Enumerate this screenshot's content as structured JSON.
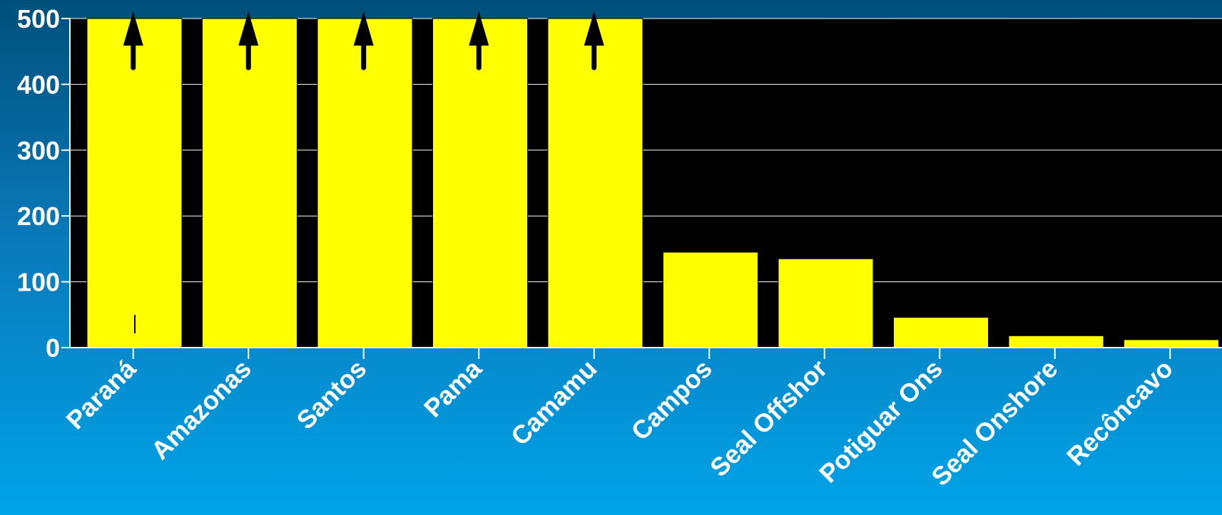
{
  "chart_data": {
    "type": "bar",
    "title": "",
    "xlabel": "",
    "ylabel": "",
    "categories": [
      "Paraná",
      "Amazonas",
      "Santos",
      "Pama",
      "Camamu",
      "Campos",
      "Seal Offshor",
      "Potiguar Ons",
      "Seal Onshore",
      "Recôncavo"
    ],
    "values": [
      500,
      500,
      500,
      500,
      500,
      145,
      135,
      46,
      18,
      12
    ],
    "exceeds_axis": [
      true,
      true,
      true,
      true,
      true,
      false,
      false,
      false,
      false,
      false
    ],
    "ylim": [
      0,
      500
    ],
    "yticks": [
      0,
      100,
      200,
      300,
      400,
      500
    ],
    "grid": true,
    "legend": "none",
    "colors": {
      "bar": "#ffff00",
      "plot_background": "#000000",
      "grid": "#ffffff",
      "arrow": "#000000",
      "text": "#ffffff"
    }
  }
}
